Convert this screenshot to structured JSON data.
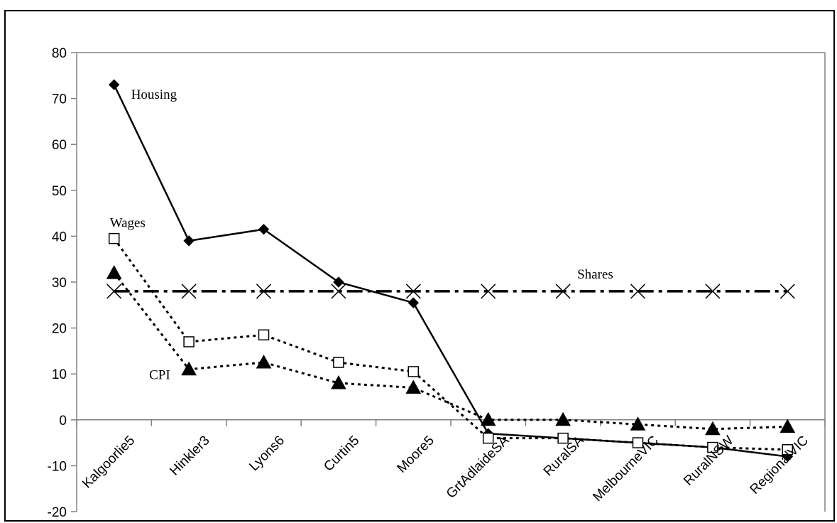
{
  "chart_data": {
    "type": "line",
    "categories": [
      "Kalgoorlie5",
      "Hinkler3",
      "Lyons6",
      "Curtin5",
      "Moore5",
      "GrtAdlaideSA",
      "RuralSA",
      "MelbourneVIC",
      "RuralNSW",
      "RegionalVIC"
    ],
    "ylim": [
      -20,
      80
    ],
    "yticks": [
      -20,
      -10,
      0,
      10,
      20,
      30,
      40,
      50,
      60,
      70,
      80
    ],
    "grid": false,
    "legend": "none",
    "series": [
      {
        "name": "Housing",
        "marker": "diamond-filled",
        "line": "solid",
        "color": "#000000",
        "values": [
          73,
          39,
          41.5,
          30,
          25.5,
          -3,
          -4,
          -5,
          -6,
          -8
        ]
      },
      {
        "name": "Wages",
        "marker": "square-open",
        "line": "dotted",
        "color": "#000000",
        "values": [
          39.5,
          17,
          18.5,
          12.5,
          10.5,
          -4,
          -4,
          -5,
          -6,
          -6.5
        ]
      },
      {
        "name": "CPI",
        "marker": "triangle-filled",
        "line": "dotted",
        "color": "#000000",
        "values": [
          32,
          11,
          12.5,
          8,
          7,
          0,
          0,
          -1,
          -2,
          -1.5
        ]
      },
      {
        "name": "Shares",
        "marker": "x",
        "line": "dash-dot",
        "color": "#000000",
        "values": [
          28,
          28,
          28,
          28,
          28,
          28,
          28,
          28,
          28,
          28
        ]
      }
    ]
  }
}
